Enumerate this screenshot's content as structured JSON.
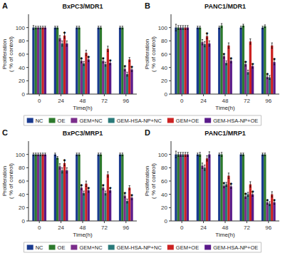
{
  "chart_data": [
    {
      "type": "bar",
      "title": "BxPC3/MDR1",
      "annotations": [
        "A"
      ],
      "categories": [
        "0",
        "24",
        "48",
        "72",
        "96"
      ],
      "xlabel": "Time(h)",
      "ylabel": "Proliferation\n( % of control)",
      "ylim": [
        0,
        120
      ],
      "yticks": [
        0,
        20,
        40,
        60,
        80,
        100
      ],
      "grid": false,
      "legend": "bottom",
      "series": [
        {
          "name": "NC",
          "color": "#1a3a8f",
          "values": [
            100,
            100,
            100,
            100,
            100
          ],
          "errors": [
            3,
            2,
            2,
            2,
            2
          ]
        },
        {
          "name": "OE",
          "color": "#2d7a2d",
          "values": [
            100,
            100,
            100,
            100,
            100
          ],
          "errors": [
            2,
            2,
            2,
            2,
            2
          ]
        },
        {
          "name": "GEM+NC",
          "color": "#7b2d8b",
          "values": [
            100,
            84,
            50,
            50,
            38
          ],
          "errors": [
            2,
            4,
            3,
            3,
            3
          ],
          "annotations": [
            null,
            null,
            "*",
            "*",
            "*"
          ]
        },
        {
          "name": "GEM-HSA-NP+NC",
          "color": "#2a7a7a",
          "values": [
            100,
            76,
            46,
            45,
            30
          ],
          "errors": [
            2,
            4,
            3,
            3,
            3
          ]
        },
        {
          "name": "GEM+OE",
          "color": "#cc2222",
          "values": [
            100,
            88,
            62,
            68,
            52
          ],
          "errors": [
            2,
            4,
            4,
            4,
            3
          ],
          "annotations": [
            null,
            "*",
            null,
            null,
            null
          ]
        },
        {
          "name": "GEM-HSA-NP+OE",
          "color": "#5a1a8a",
          "values": [
            100,
            76,
            52,
            47,
            37
          ],
          "errors": [
            2,
            4,
            3,
            3,
            3
          ],
          "annotations": [
            null,
            null,
            "*",
            "*",
            "*"
          ]
        }
      ]
    },
    {
      "type": "bar",
      "title": "PANC1/MDR1",
      "annotations": [
        "B"
      ],
      "categories": [
        "0",
        "24",
        "48",
        "72",
        "96"
      ],
      "xlabel": "Time(h)",
      "ylabel": "Proliferation\n( % of control)",
      "ylim": [
        0,
        120
      ],
      "yticks": [
        0,
        20,
        40,
        60,
        80,
        100
      ],
      "grid": false,
      "series": [
        {
          "name": "NC",
          "color": "#1a3a8f",
          "values": [
            100,
            100,
            100,
            100,
            100
          ],
          "errors": [
            5,
            2,
            2,
            2,
            2
          ]
        },
        {
          "name": "OE",
          "color": "#2d7a2d",
          "values": [
            100,
            100,
            103,
            103,
            102
          ],
          "errors": [
            3,
            2,
            3,
            2,
            2
          ]
        },
        {
          "name": "GEM+NC",
          "color": "#7b2d8b",
          "values": [
            100,
            78,
            57,
            45,
            26
          ],
          "errors": [
            3,
            4,
            3,
            3,
            3
          ],
          "annotations": [
            null,
            null,
            "*",
            "*",
            "*"
          ]
        },
        {
          "name": "GEM-HSA-NP+NC",
          "color": "#2a7a7a",
          "values": [
            100,
            75,
            47,
            33,
            25
          ],
          "errors": [
            3,
            4,
            3,
            3,
            3
          ]
        },
        {
          "name": "GEM+OE",
          "color": "#cc2222",
          "values": [
            100,
            87,
            73,
            79,
            73
          ],
          "errors": [
            3,
            4,
            4,
            4,
            4
          ],
          "annotations": [
            null,
            "*",
            null,
            null,
            null
          ]
        },
        {
          "name": "GEM-HSA-NP+OE",
          "color": "#5a1a8a",
          "values": [
            100,
            76,
            50,
            42,
            48
          ],
          "errors": [
            3,
            4,
            3,
            3,
            4
          ],
          "annotations": [
            null,
            null,
            "*",
            "*",
            "*"
          ]
        }
      ]
    },
    {
      "type": "bar",
      "title": "BxPC3/MRP1",
      "annotations": [
        "C"
      ],
      "categories": [
        "0",
        "24",
        "48",
        "72",
        "96"
      ],
      "xlabel": "Time(h)",
      "ylabel": "Proliferation\n( % of control)",
      "ylim": [
        0,
        120
      ],
      "yticks": [
        0,
        20,
        40,
        60,
        80,
        100
      ],
      "grid": false,
      "legend": "bottom",
      "series": [
        {
          "name": "NC",
          "color": "#1a3a8f",
          "values": [
            100,
            100,
            100,
            100,
            100
          ],
          "errors": [
            2,
            2,
            2,
            2,
            2
          ]
        },
        {
          "name": "OE",
          "color": "#2d7a2d",
          "values": [
            100,
            95,
            100,
            100,
            100
          ],
          "errors": [
            2,
            2,
            2,
            2,
            2
          ]
        },
        {
          "name": "GEM+NC",
          "color": "#7b2d8b",
          "values": [
            100,
            82,
            50,
            50,
            38
          ],
          "errors": [
            2,
            4,
            3,
            3,
            3
          ],
          "annotations": [
            null,
            null,
            "*",
            "*",
            "*"
          ]
        },
        {
          "name": "GEM-HSA-NP+NC",
          "color": "#2a7a7a",
          "values": [
            100,
            76,
            42,
            42,
            30
          ],
          "errors": [
            2,
            4,
            3,
            3,
            3
          ]
        },
        {
          "name": "GEM+OE",
          "color": "#cc2222",
          "values": [
            100,
            87,
            56,
            70,
            50
          ],
          "errors": [
            2,
            4,
            4,
            4,
            3
          ],
          "annotations": [
            null,
            "*",
            null,
            null,
            null
          ]
        },
        {
          "name": "GEM-HSA-NP+OE",
          "color": "#5a1a8a",
          "values": [
            100,
            76,
            46,
            46,
            35
          ],
          "errors": [
            2,
            4,
            3,
            3,
            3
          ],
          "annotations": [
            null,
            null,
            "*",
            "*",
            "*"
          ]
        }
      ]
    },
    {
      "type": "bar",
      "title": "PANC1/MRP1",
      "annotations": [
        "D"
      ],
      "categories": [
        "0",
        "24",
        "48",
        "72",
        "96"
      ],
      "xlabel": "Time(h)",
      "ylabel": "Proliferation\n( % of control)",
      "ylim": [
        0,
        120
      ],
      "yticks": [
        0,
        20,
        40,
        60,
        80,
        100
      ],
      "grid": false,
      "series": [
        {
          "name": "NC",
          "color": "#1a3a8f",
          "values": [
            100,
            100,
            100,
            100,
            100
          ],
          "errors": [
            5,
            2,
            2,
            2,
            2
          ]
        },
        {
          "name": "OE",
          "color": "#2d7a2d",
          "values": [
            100,
            100,
            100,
            100,
            100
          ],
          "errors": [
            3,
            3,
            3,
            2,
            2
          ]
        },
        {
          "name": "GEM+NC",
          "color": "#7b2d8b",
          "values": [
            100,
            83,
            53,
            37,
            28
          ],
          "errors": [
            3,
            4,
            3,
            3,
            3
          ],
          "annotations": [
            null,
            null,
            "*",
            "*",
            "*"
          ]
        },
        {
          "name": "GEM-HSA-NP+NC",
          "color": "#2a7a7a",
          "values": [
            100,
            80,
            55,
            40,
            26
          ],
          "errors": [
            3,
            4,
            3,
            3,
            3
          ]
        },
        {
          "name": "GEM+OE",
          "color": "#cc2222",
          "values": [
            100,
            94,
            68,
            55,
            40
          ],
          "errors": [
            3,
            4,
            4,
            4,
            4
          ]
        },
        {
          "name": "GEM-HSA-NP+OE",
          "color": "#5a1a8a",
          "values": [
            100,
            100,
            52,
            40,
            28
          ],
          "errors": [
            3,
            4,
            3,
            3,
            3
          ],
          "annotations": [
            null,
            null,
            "*",
            "*",
            "*"
          ]
        }
      ]
    }
  ]
}
